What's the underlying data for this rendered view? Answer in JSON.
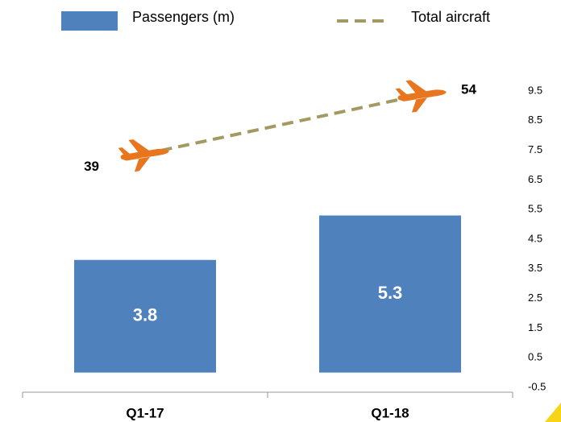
{
  "chart_data": {
    "type": "bar",
    "categories": [
      "Q1-17",
      "Q1-18"
    ],
    "series": [
      {
        "name": "Passengers (m)",
        "type": "bar",
        "color": "#4f81bd",
        "values": [
          3.8,
          5.3
        ]
      },
      {
        "name": "Total aircraft",
        "type": "line",
        "axis": "y2",
        "color": "#a39a62",
        "marker_color": "#e8761e",
        "values": [
          39,
          54
        ]
      }
    ],
    "ylim": [
      -0.5,
      9.5
    ],
    "yticks": [
      -0.5,
      0.5,
      1.5,
      2.5,
      3.5,
      4.5,
      5.5,
      6.5,
      7.5,
      8.5,
      9.5
    ],
    "y2lim": [
      -20,
      55
    ],
    "grid": false
  }
}
